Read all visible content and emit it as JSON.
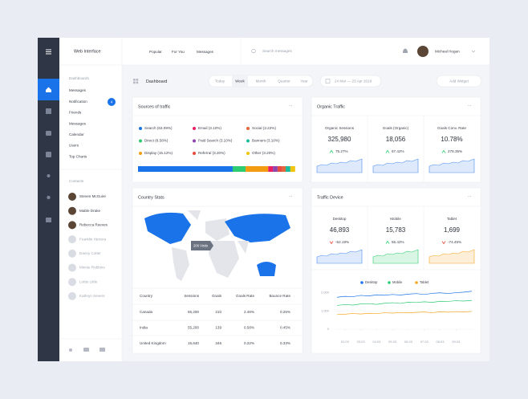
{
  "header": {
    "app_name": "Web Interface",
    "nav": [
      "Popular",
      "For You",
      "Messages"
    ],
    "search_placeholder": "Search messages",
    "user": "Micheal Hogan"
  },
  "sidebar": {
    "dashboards_title": "Dashboards",
    "items": [
      "Messages",
      "Notification",
      "Friends",
      "Messages",
      "Calendar",
      "Users",
      "Top Charts"
    ],
    "notification_badge": 4,
    "contacts_title": "Contacts",
    "contacts": [
      {
        "name": "Steven McGuire",
        "online": true
      },
      {
        "name": "Mable Drake",
        "online": true
      },
      {
        "name": "Rebecca Reeves",
        "online": true
      },
      {
        "name": "Franklin Herrera",
        "online": false
      },
      {
        "name": "Danny Colter",
        "online": false
      },
      {
        "name": "Minnie Robbins",
        "online": false
      },
      {
        "name": "Lottie Little",
        "online": false
      },
      {
        "name": "Kathryn Severs",
        "online": false
      }
    ]
  },
  "toolbar": {
    "title": "Dashboard",
    "periods": [
      "Today",
      "Week",
      "Month",
      "Quarter",
      "Year"
    ],
    "active_period": 1,
    "date_range": "24 Mar — 23 Apr 2019",
    "add_widget": "Add Widget"
  },
  "sources": {
    "title": "Sources of traffic",
    "items": [
      {
        "name": "Search",
        "value": 63.09,
        "value_label": "(63.09%)",
        "color": "#1a73e8"
      },
      {
        "name": "Direct",
        "value": 8.58,
        "value_label": "(8.58%)",
        "color": "#2ecc71"
      },
      {
        "name": "Display",
        "value": 15.12,
        "value_label": "(15.12%)",
        "color": "#f39c12"
      },
      {
        "name": "Email",
        "value": 3.1,
        "value_label": "(3.10%)",
        "color": "#e91e63"
      },
      {
        "name": "Paid Search",
        "value": 3.1,
        "value_label": "(3.10%)",
        "color": "#8e44ad"
      },
      {
        "name": "Referral",
        "value": 3.2,
        "value_label": "(3.20%)",
        "color": "#e74c3c"
      },
      {
        "name": "Social",
        "value": 2.22,
        "value_label": "(2.22%)",
        "color": "#e0683a"
      },
      {
        "name": "Banners",
        "value": 3.1,
        "value_label": "(3.10%)",
        "color": "#1abc9c"
      },
      {
        "name": "Other",
        "value": 3.2,
        "value_label": "(3.20%)",
        "color": "#f1c40f"
      }
    ]
  },
  "organic": {
    "title": "Organic Traffic",
    "metrics": [
      {
        "label": "Organic Sessions",
        "value": "325,980",
        "change": "75.27%",
        "direction": "up",
        "color": "#4a8df0"
      },
      {
        "label": "Goals (Organic)",
        "value": "18,056",
        "change": "67.42%",
        "direction": "up",
        "color": "#4a8df0"
      },
      {
        "label": "Goals Conv. Rate",
        "value": "10.78%",
        "change": "278.35%",
        "direction": "up",
        "color": "#4a8df0"
      }
    ]
  },
  "country": {
    "title": "Country Stats",
    "tooltip": "206 Visits",
    "table": {
      "columns": [
        "Country",
        "Sessions",
        "Goals",
        "Goals Rate",
        "Bounce Rate"
      ],
      "rows": [
        [
          "Canada",
          "55,200",
          "210",
          "2.46%",
          "0.25%"
        ],
        [
          "India",
          "55,200",
          "139",
          "0.58%",
          "0.45%"
        ],
        [
          "United Kingdom",
          "15,640",
          "346",
          "0.22%",
          "0.33%"
        ]
      ]
    }
  },
  "device": {
    "title": "Traffic Device",
    "metrics": [
      {
        "label": "Desktop",
        "value": "46,893",
        "change": "-52.19%",
        "direction": "down",
        "color": "#4a8df0"
      },
      {
        "label": "Mobile",
        "value": "15,783",
        "change": "55.42%",
        "direction": "up",
        "color": "#2ecc71"
      },
      {
        "label": "Tablet",
        "value": "1,699",
        "change": "-74.45%",
        "direction": "down",
        "color": "#f5a623"
      }
    ],
    "chart": {
      "type": "line",
      "x": [
        1.5,
        2,
        2.5,
        3,
        3.5,
        4,
        4.5,
        5,
        5.5,
        6,
        6.5,
        7,
        7.5,
        8,
        8.5,
        9,
        9.5,
        10
      ],
      "series": [
        {
          "name": "Desktop",
          "color": "#1a73e8",
          "values": [
            1750,
            1800,
            1780,
            1850,
            1820,
            1880,
            1860,
            1900,
            1870,
            1920,
            1950,
            1900,
            1960,
            1990,
            1950,
            2000,
            2030,
            2080
          ]
        },
        {
          "name": "Mobile",
          "color": "#2ecc71",
          "values": [
            1300,
            1350,
            1320,
            1380,
            1400,
            1360,
            1420,
            1450,
            1410,
            1480,
            1460,
            1500,
            1470,
            1530,
            1520,
            1560,
            1540,
            1580
          ]
        },
        {
          "name": "Tablet",
          "color": "#f5a623",
          "values": [
            800,
            820,
            860,
            830,
            870,
            850,
            900,
            880,
            910,
            890,
            920,
            940,
            900,
            950,
            930,
            960,
            940,
            970
          ]
        }
      ],
      "xlim": [
        1.4,
        10.1
      ],
      "ylim": [
        0,
        2200
      ],
      "yticks": [
        0,
        {
          "value": 1000,
          "label": "1,000"
        },
        {
          "value": 2000,
          "label": "2,000"
        }
      ],
      "xticks": [
        {
          "value": 2,
          "label": "02.03"
        },
        {
          "value": 3,
          "label": "03.03"
        },
        {
          "value": 4,
          "label": "04.03"
        },
        {
          "value": 5,
          "label": "05.03"
        },
        {
          "value": 6,
          "label": "06.03"
        },
        {
          "value": 7,
          "label": "07.03"
        },
        {
          "value": 8,
          "label": "08.03"
        },
        {
          "value": 9,
          "label": "09.03"
        }
      ],
      "grid": true
    }
  }
}
